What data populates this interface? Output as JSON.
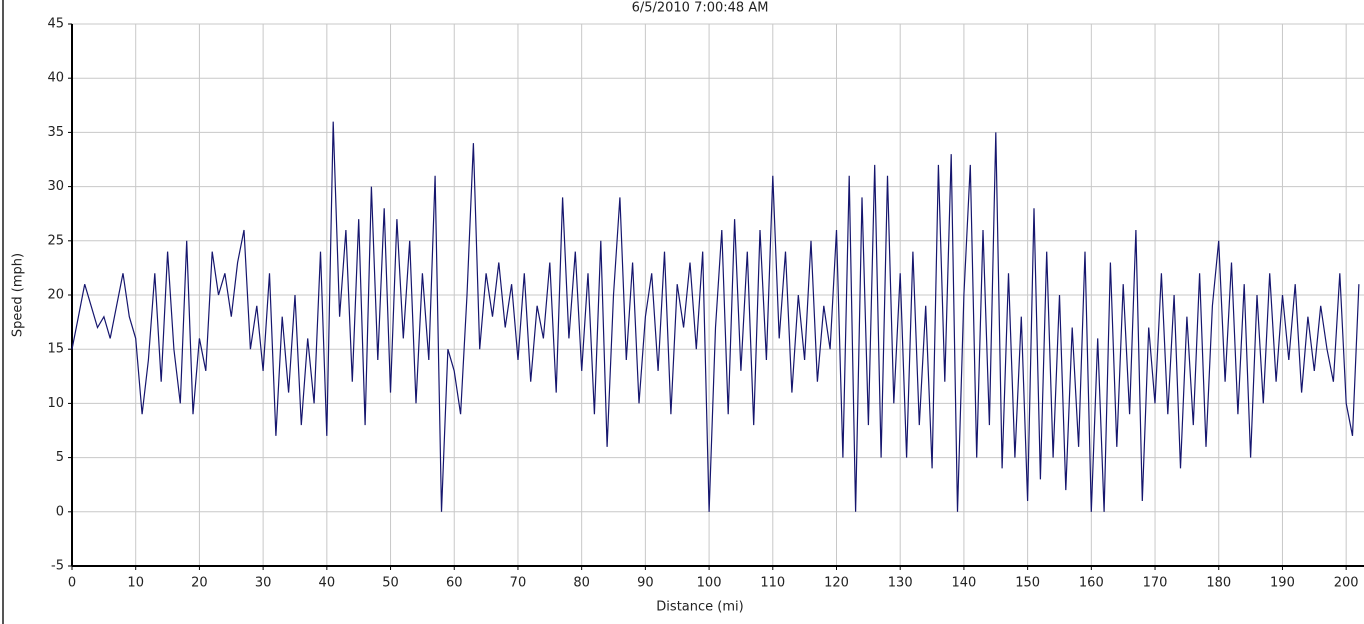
{
  "chart_data": {
    "type": "line",
    "title": "6/5/2010 7:00:48 AM",
    "x_label": "Distance (mi)",
    "y_label": "Speed (mph)",
    "xlim": [
      0,
      202.8
    ],
    "ylim": [
      -5,
      45
    ],
    "xticks": [
      0,
      10,
      20,
      30,
      40,
      50,
      60,
      70,
      80,
      90,
      100,
      110,
      120,
      130,
      140,
      150,
      160,
      170,
      180,
      190,
      200
    ],
    "yticks": [
      -5,
      0,
      5,
      10,
      15,
      20,
      25,
      30,
      35,
      40,
      45
    ],
    "grid": true,
    "series": [
      {
        "color": "#16166e",
        "x": [
          0,
          1,
          2,
          3,
          4,
          5,
          6,
          7,
          8,
          9,
          10,
          11,
          12,
          13,
          14,
          15,
          16,
          17,
          18,
          19,
          20,
          21,
          22,
          23,
          24,
          25,
          26,
          27,
          28,
          29,
          30,
          31,
          32,
          33,
          34,
          35,
          36,
          37,
          38,
          39,
          40,
          41,
          42,
          43,
          44,
          45,
          46,
          47,
          48,
          49,
          50,
          51,
          52,
          53,
          54,
          55,
          56,
          57,
          58,
          59,
          60,
          61,
          62,
          63,
          64,
          65,
          66,
          67,
          68,
          69,
          70,
          71,
          72,
          73,
          74,
          75,
          76,
          77,
          78,
          79,
          80,
          81,
          82,
          83,
          84,
          85,
          86,
          87,
          88,
          89,
          90,
          91,
          92,
          93,
          94,
          95,
          96,
          97,
          98,
          99,
          100,
          101,
          102,
          103,
          104,
          105,
          106,
          107,
          108,
          109,
          110,
          111,
          112,
          113,
          114,
          115,
          116,
          117,
          118,
          119,
          120,
          121,
          122,
          123,
          124,
          125,
          126,
          127,
          128,
          129,
          130,
          131,
          132,
          133,
          134,
          135,
          136,
          137,
          138,
          139,
          140,
          141,
          142,
          143,
          144,
          145,
          146,
          147,
          148,
          149,
          150,
          151,
          152,
          153,
          154,
          155,
          156,
          157,
          158,
          159,
          160,
          161,
          162,
          163,
          164,
          165,
          166,
          167,
          168,
          169,
          170,
          171,
          172,
          173,
          174,
          175,
          176,
          177,
          178,
          179,
          180,
          181,
          182,
          183,
          184,
          185,
          186,
          187,
          188,
          189,
          190,
          191,
          192,
          193,
          194,
          195,
          196,
          197,
          198,
          199,
          200,
          201,
          202
        ],
        "values": [
          15,
          18,
          21,
          19,
          17,
          18,
          16,
          19,
          22,
          18,
          16,
          9,
          14,
          22,
          12,
          24,
          15,
          10,
          25,
          9,
          16,
          13,
          24,
          20,
          22,
          18,
          23,
          26,
          15,
          19,
          13,
          22,
          7,
          18,
          11,
          20,
          8,
          16,
          10,
          24,
          7,
          36,
          18,
          26,
          12,
          27,
          8,
          30,
          14,
          28,
          11,
          27,
          16,
          25,
          10,
          22,
          14,
          31,
          0,
          15,
          13,
          9,
          20,
          34,
          15,
          22,
          18,
          23,
          17,
          21,
          14,
          22,
          12,
          19,
          16,
          23,
          11,
          29,
          16,
          24,
          13,
          22,
          9,
          25,
          6,
          20,
          29,
          14,
          23,
          10,
          18,
          22,
          13,
          24,
          9,
          21,
          17,
          23,
          15,
          24,
          0,
          17,
          26,
          9,
          27,
          13,
          24,
          8,
          26,
          14,
          31,
          16,
          24,
          11,
          20,
          14,
          25,
          12,
          19,
          15,
          26,
          5,
          31,
          0,
          29,
          8,
          32,
          5,
          31,
          10,
          22,
          5,
          24,
          8,
          19,
          4,
          32,
          12,
          33,
          0,
          20,
          32,
          5,
          26,
          8,
          35,
          4,
          22,
          5,
          18,
          1,
          28,
          3,
          24,
          5,
          20,
          2,
          17,
          6,
          24,
          0,
          16,
          0,
          23,
          6,
          21,
          9,
          26,
          1,
          17,
          10,
          22,
          9,
          20,
          4,
          18,
          8,
          22,
          6,
          19,
          25,
          12,
          23,
          9,
          21,
          5,
          20,
          10,
          22,
          12,
          20,
          14,
          21,
          11,
          18,
          13,
          19,
          15,
          12,
          22,
          10,
          7,
          21
        ]
      }
    ]
  }
}
